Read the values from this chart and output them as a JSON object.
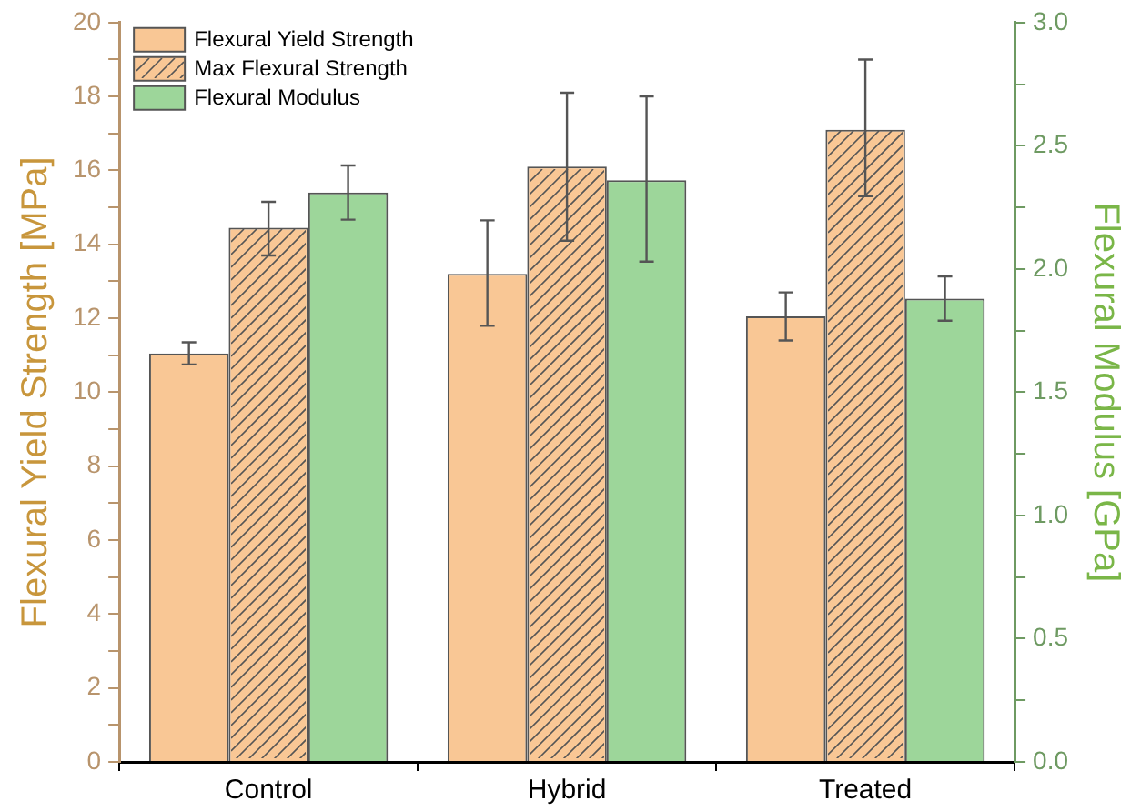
{
  "chart_data": {
    "type": "bar",
    "ylabel": "Flexural Yield Strength [MPa]",
    "y2label": "Flexural Modulus [GPa]",
    "categories": [
      "Control",
      "Hybrid",
      "Treated"
    ],
    "series": [
      {
        "name": "Flexural Yield Strength",
        "color": "#f9c795",
        "values": [
          11.05,
          13.2,
          12.05
        ],
        "errors": [
          [
            10.75,
            11.35
          ],
          [
            11.8,
            14.65
          ],
          [
            11.4,
            12.7
          ]
        ]
      },
      {
        "name": "Max Flexural Strength",
        "color": "#f9c795",
        "values": [
          14.45,
          16.1,
          17.1
        ],
        "errors": [
          [
            13.7,
            15.15
          ],
          [
            14.1,
            18.1
          ],
          [
            15.3,
            19.0
          ]
        ]
      },
      {
        "name": "Flexural Modulus",
        "color": "#9dd69a",
        "values": [
          2.31,
          2.36,
          1.88
        ],
        "errors": [
          [
            2.2,
            2.42
          ],
          [
            2.03,
            2.7
          ],
          [
            1.79,
            1.97
          ]
        ],
        "axis": "y2"
      }
    ],
    "ylim": [
      0,
      20
    ],
    "yticks": [
      0,
      {
        "value": 1,
        "label": null
      },
      2,
      {
        "value": 3,
        "label": null
      },
      4,
      {
        "value": 5,
        "label": null
      },
      6,
      {
        "value": 7,
        "label": null
      },
      8,
      {
        "value": 9,
        "label": null
      },
      10,
      {
        "value": 11,
        "label": null
      },
      12,
      {
        "value": 13,
        "label": null
      },
      14,
      {
        "value": 15,
        "label": null
      },
      16,
      {
        "value": 17,
        "label": null
      },
      18,
      {
        "value": 19,
        "label": null
      },
      20
    ],
    "y2lim": [
      0,
      3
    ],
    "y2ticks": [
      {
        "value": 0,
        "label": "0.0"
      },
      {
        "value": 0.25,
        "label": null
      },
      {
        "value": 0.5,
        "label": "0.5"
      },
      {
        "value": 0.75,
        "label": null
      },
      {
        "value": 1,
        "label": "1.0"
      },
      {
        "value": 1.25,
        "label": null
      },
      {
        "value": 1.5,
        "label": "1.5"
      },
      {
        "value": 1.75,
        "label": null
      },
      {
        "value": 2,
        "label": "2.0"
      },
      {
        "value": 2.25,
        "label": null
      },
      {
        "value": 2.5,
        "label": "2.5"
      },
      {
        "value": 2.75,
        "label": null
      },
      {
        "value": 3,
        "label": "3.0"
      }
    ],
    "legend": "top left",
    "grid": false
  }
}
